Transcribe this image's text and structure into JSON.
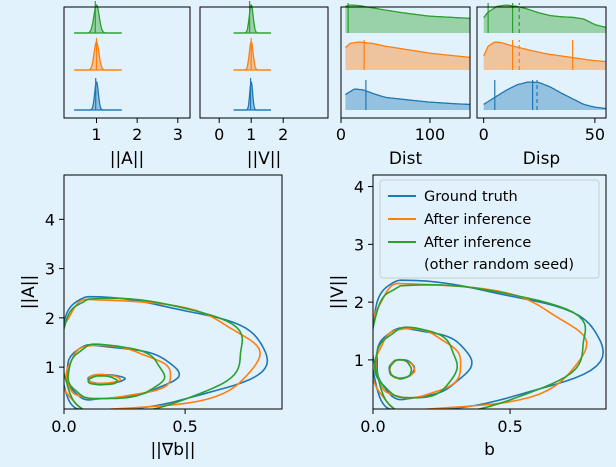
{
  "colors": {
    "ground_truth": "#1f77b4",
    "after_inference": "#ff7f0e",
    "other_seed": "#2ca02c",
    "background": "#e2f2fc"
  },
  "chart_data": [
    {
      "type": "area",
      "xlabel": "||A||",
      "xlim": [
        0.2,
        3.3
      ],
      "xticks": [
        1,
        2,
        3
      ],
      "series": [
        {
          "color": "#1f77b4",
          "mean": 1.0,
          "sd": 0.045,
          "median": 0.98
        },
        {
          "color": "#ff7f0e",
          "mean": 1.0,
          "sd": 0.06,
          "median": 1.0
        },
        {
          "color": "#2ca02c",
          "mean": 1.0,
          "sd": 0.065,
          "median": 0.97
        }
      ]
    },
    {
      "type": "area",
      "xlabel": "||V||",
      "xlim": [
        -0.6,
        3.4
      ],
      "xticks": [
        0,
        1,
        2
      ],
      "series": [
        {
          "color": "#1f77b4",
          "mean": 1.0,
          "sd": 0.045,
          "median": 0.98
        },
        {
          "color": "#ff7f0e",
          "mean": 1.0,
          "sd": 0.06,
          "median": 1.0
        },
        {
          "color": "#2ca02c",
          "mean": 1.0,
          "sd": 0.06,
          "median": 0.95
        }
      ]
    },
    {
      "type": "area",
      "xlabel": "Dist",
      "xlim": [
        0,
        145
      ],
      "xticks": [
        0,
        100
      ],
      "series": [
        {
          "color": "#1f77b4",
          "median": 28,
          "density_x": [
            5,
            15,
            25,
            35,
            50,
            70,
            100,
            130,
            145
          ],
          "density_y": [
            0.55,
            0.75,
            0.72,
            0.6,
            0.45,
            0.38,
            0.28,
            0.22,
            0.2
          ]
        },
        {
          "color": "#ff7f0e",
          "median": 26,
          "density_x": [
            5,
            10,
            20,
            35,
            50,
            70,
            100,
            130,
            145
          ],
          "density_y": [
            0.8,
            0.95,
            1.0,
            0.95,
            0.85,
            0.75,
            0.6,
            0.5,
            0.45
          ]
        },
        {
          "color": "#2ca02c",
          "median": 8,
          "density_x": [
            5,
            10,
            20,
            35,
            50,
            70,
            100,
            130,
            145
          ],
          "density_y": [
            0.95,
            1.0,
            0.98,
            0.9,
            0.82,
            0.72,
            0.6,
            0.55,
            0.52
          ]
        }
      ]
    },
    {
      "type": "area",
      "xlabel": "Disp",
      "xlim": [
        -3,
        55
      ],
      "xticks": [
        0,
        50
      ],
      "series": [
        {
          "color": "#1f77b4",
          "median": 22,
          "mean": 24,
          "marker": 5,
          "density_x": [
            0,
            5,
            10,
            15,
            20,
            25,
            30,
            35,
            40,
            45,
            50,
            55
          ],
          "density_y": [
            0.2,
            0.45,
            0.7,
            0.9,
            1.0,
            0.98,
            0.82,
            0.6,
            0.4,
            0.2,
            0.1,
            0.05
          ]
        },
        {
          "color": "#ff7f0e",
          "median": 13,
          "mean": 16,
          "marker": 40,
          "density_x": [
            0,
            2,
            5,
            8,
            11,
            15,
            20,
            28,
            35,
            42,
            48,
            55
          ],
          "density_y": [
            0.5,
            0.85,
            1.0,
            0.98,
            0.9,
            0.82,
            0.72,
            0.58,
            0.5,
            0.42,
            0.35,
            0.3
          ]
        },
        {
          "color": "#2ca02c",
          "median": 13,
          "mean": 16,
          "marker": 2,
          "density_x": [
            0,
            2,
            6,
            10,
            15,
            20,
            25,
            30,
            35,
            40,
            45,
            50,
            55
          ],
          "density_y": [
            0.55,
            0.75,
            0.95,
            1.0,
            0.95,
            0.85,
            0.72,
            0.62,
            0.58,
            0.56,
            0.5,
            0.3,
            0.2
          ]
        }
      ]
    },
    {
      "type": "contour",
      "xlabel": "||∇b||",
      "ylabel": "||A||",
      "xlim": [
        0,
        0.9
      ],
      "ylim": [
        0.15,
        4.9
      ],
      "xticks": [
        0.0,
        0.5
      ],
      "yticks": [
        1,
        2,
        3,
        4
      ],
      "series": [
        {
          "color": "#1f77b4",
          "levels": [
            {
              "center": [
                0.15,
                0.75
              ],
              "left": 0.05,
              "right": 0.1,
              "down": 0.08,
              "up": 0.1
            },
            {
              "center": [
                0.12,
                0.85
              ],
              "left": 0.11,
              "right": 0.34,
              "down": 0.5,
              "up": 0.6
            },
            {
              "center": [
                0.1,
                1.3
              ],
              "left": 0.12,
              "right": 0.72,
              "down": 1.2,
              "up": 1.1
            }
          ]
        },
        {
          "color": "#ff7f0e",
          "levels": [
            {
              "center": [
                0.15,
                0.75
              ],
              "left": 0.05,
              "right": 0.08,
              "down": 0.08,
              "up": 0.1
            },
            {
              "center": [
                0.12,
                0.85
              ],
              "left": 0.11,
              "right": 0.32,
              "down": 0.5,
              "up": 0.58
            },
            {
              "center": [
                0.1,
                1.3
              ],
              "left": 0.12,
              "right": 0.71,
              "down": 1.2,
              "up": 1.05
            }
          ]
        },
        {
          "color": "#2ca02c",
          "levels": [
            {
              "center": [
                0.15,
                0.72
              ],
              "left": 0.05,
              "right": 0.07,
              "down": 0.08,
              "up": 0.1
            },
            {
              "center": [
                0.12,
                0.85
              ],
              "left": 0.1,
              "right": 0.3,
              "down": 0.5,
              "up": 0.6
            },
            {
              "center": [
                0.1,
                1.3
              ],
              "left": 0.11,
              "right": 0.66,
              "down": 1.2,
              "up": 1.1
            }
          ]
        }
      ]
    },
    {
      "type": "contour",
      "xlabel": "b",
      "ylabel": "||V||",
      "xlim": [
        0,
        0.85
      ],
      "ylim": [
        0.15,
        4.2
      ],
      "xticks": [
        0.0,
        0.5
      ],
      "yticks": [
        1,
        2,
        3,
        4
      ],
      "legend": {
        "position": "upper-right",
        "entries": [
          {
            "label": "Ground truth",
            "color": "#1f77b4"
          },
          {
            "label": "After inference",
            "color": "#ff7f0e"
          },
          {
            "label": "After inference",
            "label2": "(other random seed)",
            "color": "#2ca02c"
          }
        ]
      },
      "series": [
        {
          "color": "#1f77b4",
          "levels": [
            {
              "center": [
                0.1,
                0.83
              ],
              "left": 0.04,
              "right": 0.05,
              "down": 0.15,
              "up": 0.18
            },
            {
              "center": [
                0.12,
                0.95
              ],
              "left": 0.11,
              "right": 0.23,
              "down": 0.62,
              "up": 0.6
            },
            {
              "center": [
                0.1,
                1.3
              ],
              "left": 0.11,
              "right": 0.72,
              "down": 1.2,
              "up": 1.05
            }
          ]
        },
        {
          "color": "#ff7f0e",
          "levels": [
            {
              "center": [
                0.1,
                0.83
              ],
              "left": 0.04,
              "right": 0.05,
              "down": 0.15,
              "up": 0.17
            },
            {
              "center": [
                0.12,
                0.95
              ],
              "left": 0.11,
              "right": 0.2,
              "down": 0.62,
              "up": 0.58
            },
            {
              "center": [
                0.1,
                1.3
              ],
              "left": 0.11,
              "right": 0.68,
              "down": 1.2,
              "up": 1.0
            }
          ]
        },
        {
          "color": "#2ca02c",
          "levels": [
            {
              "center": [
                0.1,
                0.83
              ],
              "left": 0.04,
              "right": 0.04,
              "down": 0.15,
              "up": 0.17
            },
            {
              "center": [
                0.12,
                0.95
              ],
              "left": 0.11,
              "right": 0.19,
              "down": 0.62,
              "up": 0.6
            },
            {
              "center": [
                0.1,
                1.3
              ],
              "left": 0.1,
              "right": 0.7,
              "down": 1.2,
              "up": 1.0
            }
          ]
        }
      ]
    }
  ]
}
